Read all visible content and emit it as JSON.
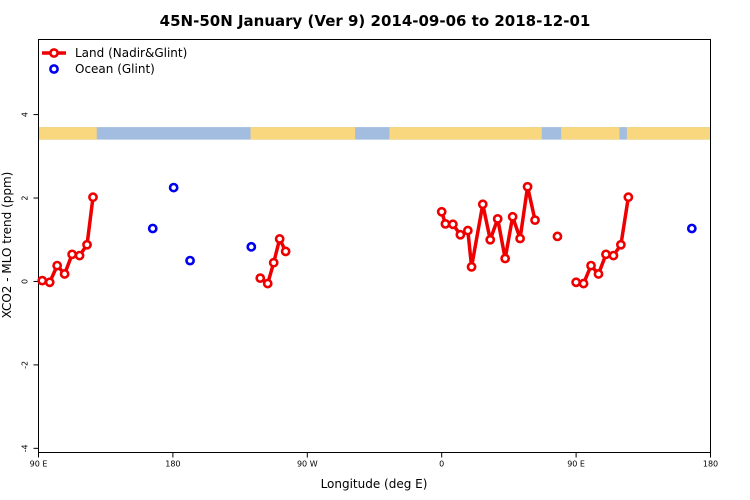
{
  "chart_data": {
    "type": "line",
    "title": "45N-50N January (Ver 9)   2014-09-06 to 2018-12-01",
    "xlabel": "Longitude (deg E)",
    "ylabel": "XCO2 - MLO trend (ppm)",
    "xlim": [
      90,
      540
    ],
    "ylim": [
      -4.1,
      5.8
    ],
    "x_ticks": [
      {
        "value": 90,
        "label": "90 E"
      },
      {
        "value": 180,
        "label": "180"
      },
      {
        "value": 270,
        "label": "90 W"
      },
      {
        "value": 360,
        "label": "0"
      },
      {
        "value": 450,
        "label": "90 E"
      },
      {
        "value": 540,
        "label": "180"
      }
    ],
    "y_ticks": [
      {
        "value": -4,
        "label": "-4"
      },
      {
        "value": -2,
        "label": "-2"
      },
      {
        "value": 0,
        "label": "0"
      },
      {
        "value": 2,
        "label": "2"
      },
      {
        "value": 4,
        "label": "4"
      }
    ],
    "map_strip": {
      "ymin": 3.4,
      "ymax": 3.7,
      "land_color": "#f9d77e",
      "ocean_color": "#a3bde0"
    },
    "legend": {
      "position": "top-left"
    },
    "series": [
      {
        "name": "Land (Nadir&Glint)",
        "color": "#ee0000",
        "style": "line+points",
        "segments": [
          [
            [
              92.5,
              0.02
            ],
            [
              97.5,
              -0.02
            ],
            [
              102.5,
              0.38
            ],
            [
              107.5,
              0.18
            ],
            [
              112.5,
              0.65
            ],
            [
              117.5,
              0.62
            ],
            [
              122.5,
              0.88
            ],
            [
              126.5,
              2.02
            ]
          ],
          [
            [
              238.5,
              0.08
            ],
            [
              243.5,
              -0.05
            ],
            [
              247.5,
              0.45
            ],
            [
              251.5,
              1.02
            ],
            [
              255.5,
              0.72
            ]
          ],
          [
            [
              360,
              1.67
            ],
            [
              362.5,
              1.38
            ],
            [
              367.5,
              1.37
            ],
            [
              372.5,
              1.12
            ],
            [
              377.5,
              1.22
            ],
            [
              380,
              0.35
            ],
            [
              387.5,
              1.85
            ],
            [
              392.5,
              1.0
            ],
            [
              397.5,
              1.5
            ],
            [
              402.5,
              0.55
            ],
            [
              407.5,
              1.55
            ],
            [
              412.5,
              1.03
            ],
            [
              417.5,
              2.27
            ],
            [
              422.5,
              1.47
            ]
          ],
          [
            [
              437.5,
              1.08
            ]
          ],
          [
            [
              450,
              -0.02
            ],
            [
              455,
              -0.05
            ],
            [
              460,
              0.38
            ],
            [
              465,
              0.18
            ],
            [
              470,
              0.65
            ],
            [
              475,
              0.62
            ],
            [
              480,
              0.88
            ],
            [
              485,
              2.02
            ]
          ]
        ]
      },
      {
        "name": "Ocean (Glint)",
        "color": "#0000ee",
        "style": "points",
        "segments": [
          [
            [
              166.5,
              1.27
            ]
          ],
          [
            [
              180.5,
              2.25
            ]
          ],
          [
            [
              191.5,
              0.5
            ]
          ],
          [
            [
              232.5,
              0.83
            ]
          ],
          [
            [
              527.5,
              1.27
            ]
          ]
        ]
      }
    ]
  }
}
